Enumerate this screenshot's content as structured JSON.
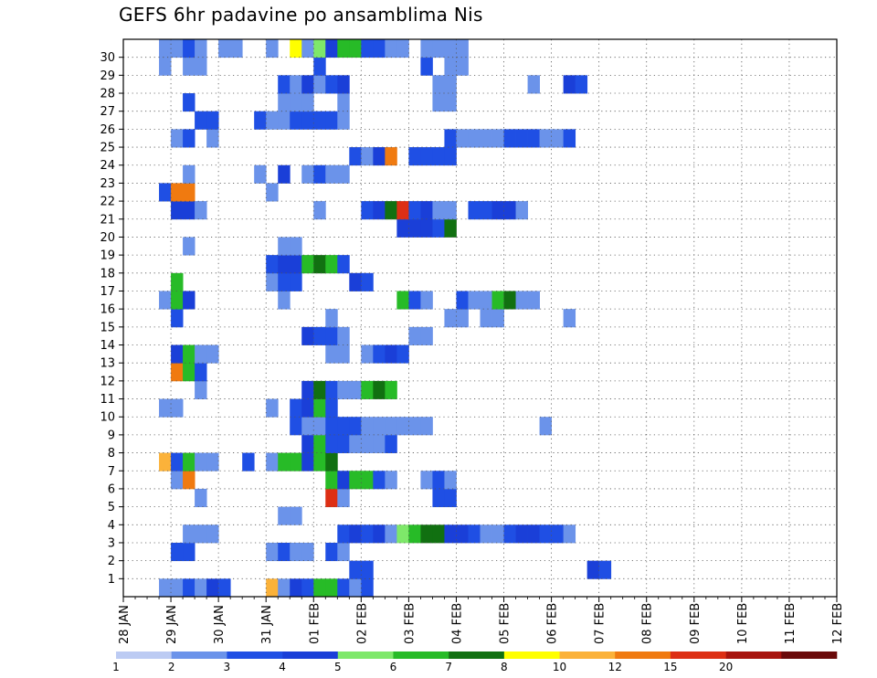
{
  "chart_data": {
    "type": "heatmap",
    "title": "GEFS 6hr padavine po ansamblima Nis",
    "xlabel": "",
    "ylabel": "",
    "grid": true,
    "legend": "bottom",
    "x_start": "28 JAN 00Z",
    "x_step_hours": 6,
    "x_tick_labels": [
      "28 JAN",
      "29 JAN",
      "30 JAN",
      "31 JAN",
      "01 FEB",
      "02 FEB",
      "03 FEB",
      "04 FEB",
      "05 FEB",
      "06 FEB",
      "07 FEB",
      "08 FEB",
      "09 FEB",
      "10 FEB",
      "11 FEB",
      "12 FEB"
    ],
    "y_tick_labels": [
      "1",
      "2",
      "3",
      "4",
      "5",
      "6",
      "7",
      "8",
      "9",
      "10",
      "11",
      "12",
      "13",
      "14",
      "15",
      "16",
      "17",
      "18",
      "19",
      "20",
      "21",
      "22",
      "23",
      "24",
      "25",
      "26",
      "27",
      "28",
      "29",
      "30"
    ],
    "legend_labels": [
      "1",
      "2",
      "3",
      "4",
      "5",
      "6",
      "7",
      "8",
      "10",
      "12",
      "15",
      "20"
    ],
    "colors": [
      "#bccbf3",
      "#6b93ea",
      "#1f4fe4",
      "#1a3fd8",
      "#7ee86a",
      "#27bb27",
      "#117011",
      "#ffff00",
      "#fbb23a",
      "#f07a10",
      "#dd2f14",
      "#a8140e",
      "#6a0a0a"
    ],
    "members": [
      {
        "member": 0,
        "cells": [
          [
            3,
            1
          ],
          [
            4,
            1
          ],
          [
            5,
            2
          ],
          [
            6,
            1
          ],
          [
            7,
            3
          ],
          [
            8,
            2
          ],
          [
            12,
            8
          ],
          [
            13,
            1
          ],
          [
            14,
            3
          ],
          [
            15,
            2
          ],
          [
            16,
            5
          ],
          [
            17,
            5
          ],
          [
            18,
            2
          ],
          [
            19,
            1
          ],
          [
            20,
            2
          ]
        ]
      },
      {
        "member": 1,
        "cells": [
          [
            19,
            2
          ],
          [
            20,
            2
          ],
          [
            39,
            3
          ],
          [
            40,
            2
          ]
        ]
      },
      {
        "member": 2,
        "cells": [
          [
            4,
            2
          ],
          [
            5,
            2
          ],
          [
            12,
            1
          ],
          [
            13,
            2
          ],
          [
            14,
            1
          ],
          [
            15,
            1
          ],
          [
            17,
            2
          ],
          [
            18,
            1
          ]
        ]
      },
      {
        "member": 3,
        "cells": [
          [
            5,
            1
          ],
          [
            6,
            1
          ],
          [
            7,
            1
          ],
          [
            18,
            2
          ],
          [
            19,
            3
          ],
          [
            20,
            2
          ],
          [
            21,
            3
          ],
          [
            22,
            1
          ],
          [
            23,
            4
          ],
          [
            24,
            5
          ],
          [
            25,
            6
          ],
          [
            26,
            6
          ],
          [
            27,
            3
          ],
          [
            28,
            3
          ],
          [
            29,
            2
          ],
          [
            30,
            1
          ],
          [
            31,
            1
          ],
          [
            32,
            2
          ],
          [
            33,
            3
          ],
          [
            34,
            3
          ],
          [
            35,
            2
          ],
          [
            36,
            2
          ],
          [
            37,
            1
          ]
        ]
      },
      {
        "member": 4,
        "cells": [
          [
            13,
            1
          ],
          [
            14,
            1
          ]
        ]
      },
      {
        "member": 5,
        "cells": [
          [
            6,
            1
          ],
          [
            17,
            10
          ],
          [
            18,
            1
          ],
          [
            26,
            2
          ],
          [
            27,
            2
          ]
        ]
      },
      {
        "member": 6,
        "cells": [
          [
            4,
            1
          ],
          [
            5,
            9
          ],
          [
            17,
            5
          ],
          [
            18,
            3
          ],
          [
            19,
            5
          ],
          [
            20,
            5
          ],
          [
            21,
            2
          ],
          [
            22,
            1
          ],
          [
            25,
            1
          ],
          [
            26,
            2
          ],
          [
            27,
            1
          ]
        ]
      },
      {
        "member": 7,
        "cells": [
          [
            3,
            8
          ],
          [
            4,
            2
          ],
          [
            5,
            5
          ],
          [
            6,
            1
          ],
          [
            7,
            1
          ],
          [
            10,
            2
          ],
          [
            12,
            1
          ],
          [
            13,
            5
          ],
          [
            14,
            5
          ],
          [
            15,
            3
          ],
          [
            16,
            5
          ],
          [
            17,
            6
          ]
        ]
      },
      {
        "member": 8,
        "cells": [
          [
            15,
            3
          ],
          [
            16,
            5
          ],
          [
            17,
            2
          ],
          [
            18,
            2
          ],
          [
            19,
            1
          ],
          [
            20,
            1
          ],
          [
            21,
            1
          ],
          [
            22,
            2
          ]
        ]
      },
      {
        "member": 9,
        "cells": [
          [
            14,
            2
          ],
          [
            15,
            1
          ],
          [
            16,
            1
          ],
          [
            17,
            2
          ],
          [
            18,
            2
          ],
          [
            19,
            2
          ],
          [
            20,
            1
          ],
          [
            21,
            1
          ],
          [
            22,
            1
          ],
          [
            23,
            1
          ],
          [
            24,
            1
          ],
          [
            25,
            1
          ],
          [
            35,
            1
          ]
        ]
      },
      {
        "member": 10,
        "cells": [
          [
            3,
            1
          ],
          [
            4,
            1
          ],
          [
            12,
            1
          ],
          [
            14,
            2
          ],
          [
            15,
            3
          ],
          [
            16,
            5
          ],
          [
            17,
            2
          ]
        ]
      },
      {
        "member": 11,
        "cells": [
          [
            6,
            1
          ],
          [
            15,
            3
          ],
          [
            16,
            6
          ],
          [
            17,
            2
          ],
          [
            18,
            1
          ],
          [
            19,
            1
          ],
          [
            20,
            5
          ],
          [
            21,
            6
          ],
          [
            22,
            5
          ]
        ]
      },
      {
        "member": 12,
        "cells": [
          [
            4,
            9
          ],
          [
            5,
            5
          ],
          [
            6,
            2
          ]
        ]
      },
      {
        "member": 13,
        "cells": [
          [
            4,
            3
          ],
          [
            5,
            5
          ],
          [
            6,
            1
          ],
          [
            7,
            1
          ],
          [
            17,
            1
          ],
          [
            18,
            1
          ],
          [
            20,
            1
          ],
          [
            21,
            2
          ],
          [
            22,
            3
          ],
          [
            23,
            2
          ]
        ]
      },
      {
        "member": 14,
        "cells": [
          [
            15,
            3
          ],
          [
            16,
            2
          ],
          [
            17,
            2
          ],
          [
            18,
            1
          ],
          [
            24,
            1
          ],
          [
            25,
            1
          ]
        ]
      },
      {
        "member": 15,
        "cells": [
          [
            4,
            2
          ],
          [
            17,
            1
          ],
          [
            27,
            1
          ],
          [
            28,
            1
          ],
          [
            30,
            1
          ],
          [
            31,
            1
          ],
          [
            37,
            1
          ]
        ]
      },
      {
        "member": 16,
        "cells": [
          [
            3,
            1
          ],
          [
            4,
            5
          ],
          [
            5,
            3
          ],
          [
            13,
            1
          ],
          [
            23,
            5
          ],
          [
            24,
            2
          ],
          [
            25,
            1
          ],
          [
            28,
            2
          ],
          [
            29,
            1
          ],
          [
            30,
            1
          ],
          [
            31,
            5
          ],
          [
            32,
            6
          ],
          [
            33,
            1
          ],
          [
            34,
            1
          ]
        ]
      },
      {
        "member": 17,
        "cells": [
          [
            4,
            5
          ],
          [
            12,
            1
          ],
          [
            13,
            2
          ],
          [
            14,
            2
          ],
          [
            19,
            3
          ],
          [
            20,
            2
          ]
        ]
      },
      {
        "member": 18,
        "cells": [
          [
            12,
            2
          ],
          [
            13,
            3
          ],
          [
            14,
            3
          ],
          [
            15,
            5
          ],
          [
            16,
            6
          ],
          [
            17,
            5
          ],
          [
            18,
            2
          ]
        ]
      },
      {
        "member": 19,
        "cells": [
          [
            5,
            1
          ],
          [
            13,
            1
          ],
          [
            14,
            1
          ]
        ]
      },
      {
        "member": 20,
        "cells": [
          [
            23,
            3
          ],
          [
            24,
            3
          ],
          [
            25,
            3
          ],
          [
            26,
            2
          ],
          [
            27,
            6
          ]
        ]
      },
      {
        "member": 21,
        "cells": [
          [
            4,
            3
          ],
          [
            5,
            3
          ],
          [
            6,
            1
          ],
          [
            16,
            1
          ],
          [
            20,
            2
          ],
          [
            21,
            3
          ],
          [
            22,
            6
          ],
          [
            23,
            10
          ],
          [
            24,
            2
          ],
          [
            25,
            3
          ],
          [
            26,
            1
          ],
          [
            27,
            1
          ],
          [
            29,
            2
          ],
          [
            30,
            2
          ],
          [
            31,
            3
          ],
          [
            32,
            3
          ],
          [
            33,
            1
          ]
        ]
      },
      {
        "member": 22,
        "cells": [
          [
            3,
            2
          ],
          [
            4,
            9
          ],
          [
            5,
            9
          ],
          [
            12,
            1
          ]
        ]
      },
      {
        "member": 23,
        "cells": [
          [
            5,
            1
          ],
          [
            11,
            1
          ],
          [
            13,
            3
          ],
          [
            15,
            1
          ],
          [
            16,
            2
          ],
          [
            17,
            1
          ],
          [
            18,
            1
          ]
        ]
      },
      {
        "member": 24,
        "cells": [
          [
            19,
            2
          ],
          [
            20,
            1
          ],
          [
            21,
            3
          ],
          [
            22,
            9
          ],
          [
            24,
            2
          ],
          [
            25,
            2
          ],
          [
            26,
            2
          ],
          [
            27,
            2
          ]
        ]
      },
      {
        "member": 25,
        "cells": [
          [
            4,
            1
          ],
          [
            5,
            2
          ],
          [
            7,
            1
          ],
          [
            27,
            2
          ],
          [
            28,
            1
          ],
          [
            29,
            1
          ],
          [
            30,
            1
          ],
          [
            31,
            1
          ],
          [
            32,
            2
          ],
          [
            33,
            2
          ],
          [
            34,
            2
          ],
          [
            35,
            1
          ],
          [
            36,
            1
          ],
          [
            37,
            2
          ]
        ]
      },
      {
        "member": 26,
        "cells": [
          [
            6,
            2
          ],
          [
            7,
            2
          ],
          [
            11,
            2
          ],
          [
            12,
            1
          ],
          [
            13,
            1
          ],
          [
            14,
            2
          ],
          [
            15,
            2
          ],
          [
            16,
            2
          ],
          [
            17,
            2
          ],
          [
            18,
            1
          ]
        ]
      },
      {
        "member": 27,
        "cells": [
          [
            5,
            2
          ],
          [
            13,
            1
          ],
          [
            14,
            1
          ],
          [
            15,
            1
          ],
          [
            18,
            1
          ],
          [
            26,
            1
          ],
          [
            27,
            1
          ]
        ]
      },
      {
        "member": 28,
        "cells": [
          [
            13,
            2
          ],
          [
            14,
            1
          ],
          [
            15,
            3
          ],
          [
            16,
            1
          ],
          [
            17,
            2
          ],
          [
            18,
            3
          ],
          [
            26,
            1
          ],
          [
            27,
            1
          ],
          [
            34,
            1
          ],
          [
            37,
            3
          ],
          [
            38,
            2
          ]
        ]
      },
      {
        "member": 29,
        "cells": [
          [
            3,
            1
          ],
          [
            5,
            1
          ],
          [
            6,
            1
          ],
          [
            16,
            2
          ],
          [
            25,
            2
          ],
          [
            27,
            1
          ],
          [
            28,
            1
          ]
        ]
      },
      {
        "member": 30,
        "cells": [
          [
            3,
            1
          ],
          [
            4,
            1
          ],
          [
            5,
            2
          ],
          [
            6,
            1
          ],
          [
            8,
            1
          ],
          [
            9,
            1
          ],
          [
            12,
            1
          ],
          [
            14,
            7
          ],
          [
            15,
            1
          ],
          [
            16,
            4
          ],
          [
            17,
            3
          ],
          [
            18,
            5
          ],
          [
            19,
            5
          ],
          [
            20,
            2
          ],
          [
            21,
            2
          ],
          [
            22,
            1
          ],
          [
            23,
            1
          ],
          [
            25,
            1
          ],
          [
            26,
            1
          ],
          [
            27,
            1
          ],
          [
            28,
            1
          ]
        ]
      }
    ]
  }
}
